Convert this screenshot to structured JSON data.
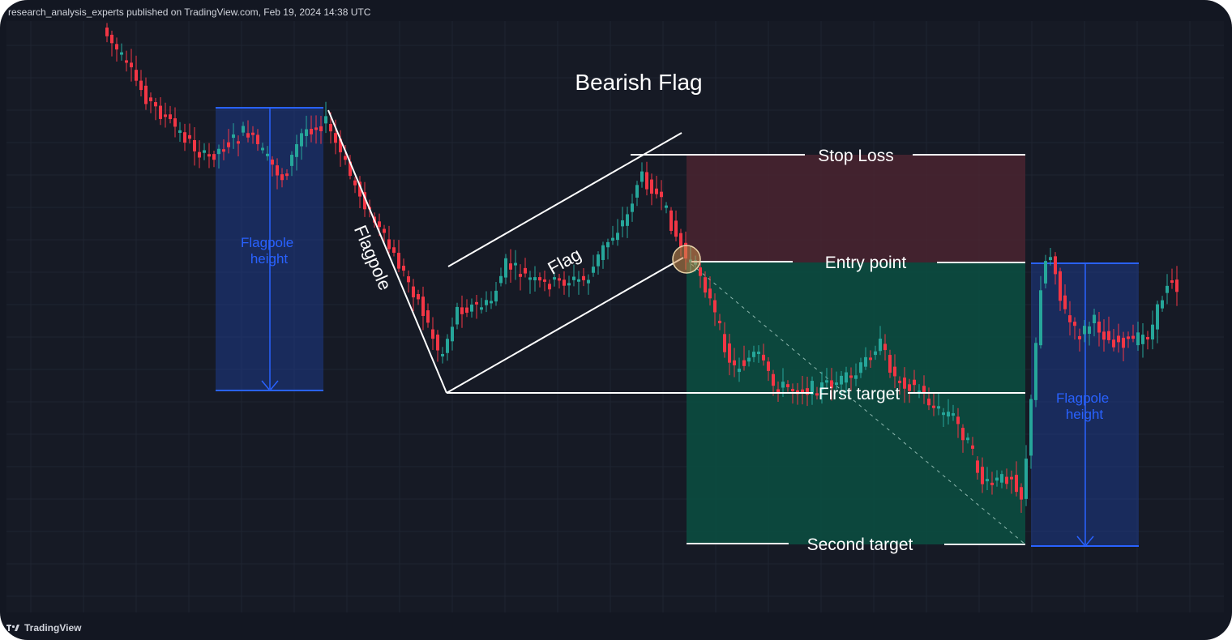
{
  "header": {
    "published": "research_analysis_experts published on TradingView.com, Feb 19, 2024 14:38 UTC"
  },
  "footer": {
    "brand": "TradingView"
  },
  "colors": {
    "up": "#26a69a",
    "down": "#f23645",
    "flagpole_box": "#1e3a8a",
    "flagpole_line": "#2962ff",
    "stop_zone": "#4a2430",
    "target_zone": "#0b4d40"
  },
  "chart_data": {
    "type": "candlestick-annotated",
    "title": "Bearish Flag",
    "annotations": {
      "flagpole": "Flagpole",
      "flag": "Flag",
      "flagpole_height_left": "Flagpole height",
      "flagpole_height_right": "Flagpole height",
      "stop_loss": "Stop Loss",
      "entry_point": "Entry point",
      "first_target": "First target",
      "second_target": "Second target"
    },
    "grid": true,
    "icons": [
      "arrow-down-icon",
      "entry-circle-icon",
      "tradingview-logo-icon"
    ]
  }
}
